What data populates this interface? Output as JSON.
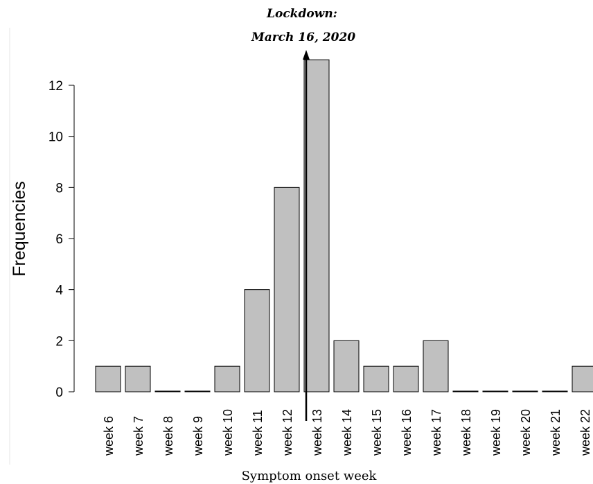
{
  "chart_data": {
    "type": "bar",
    "categories": [
      "week 6",
      "week 7",
      "week 8",
      "week 9",
      "week 10",
      "week 11",
      "week 12",
      "week 13",
      "week 14",
      "week 15",
      "week 16",
      "week 17",
      "week 18",
      "week 19",
      "week 20",
      "week 21",
      "week 22"
    ],
    "values": [
      1,
      1,
      0,
      0,
      1,
      4,
      8,
      13,
      2,
      1,
      1,
      2,
      0,
      0,
      0,
      0,
      1
    ],
    "ylabel": "Frequencies",
    "xlabel": "Symptom onset week",
    "ylim": [
      0,
      12
    ],
    "yticks": [
      0,
      2,
      4,
      6,
      8,
      10,
      12
    ],
    "bar_color": "#c0c0c0",
    "grid": false,
    "annotation": {
      "line1": "Lockdown:",
      "line2": "March 16, 2020",
      "category": "week 13"
    }
  }
}
